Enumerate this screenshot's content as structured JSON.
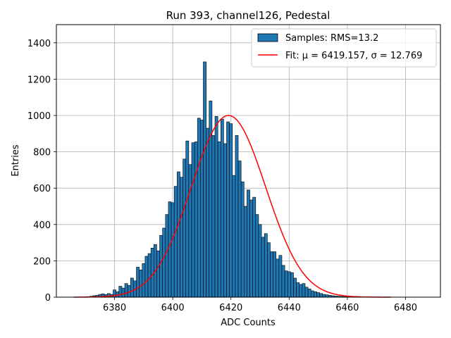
{
  "chart_data": {
    "type": "bar",
    "title": "Run 393, channel126, Pedestal",
    "xlabel": "ADC Counts",
    "ylabel": "Entries",
    "xlim": [
      6360,
      6492
    ],
    "ylim": [
      0,
      1500
    ],
    "xticks": [
      6380,
      6400,
      6420,
      6440,
      6460,
      6480
    ],
    "yticks": [
      0,
      200,
      400,
      600,
      800,
      1000,
      1200,
      1400
    ],
    "grid": true,
    "legend_position": "top-right",
    "bin_width": 1,
    "bins": {
      "x": [
        6370,
        6371,
        6372,
        6373,
        6374,
        6375,
        6376,
        6377,
        6378,
        6379,
        6380,
        6381,
        6382,
        6383,
        6384,
        6385,
        6386,
        6387,
        6388,
        6389,
        6390,
        6391,
        6392,
        6393,
        6394,
        6395,
        6396,
        6397,
        6398,
        6399,
        6400,
        6401,
        6402,
        6403,
        6404,
        6405,
        6406,
        6407,
        6408,
        6409,
        6410,
        6411,
        6412,
        6413,
        6414,
        6415,
        6416,
        6417,
        6418,
        6419,
        6420,
        6421,
        6422,
        6423,
        6424,
        6425,
        6426,
        6427,
        6428,
        6429,
        6430,
        6431,
        6432,
        6433,
        6434,
        6435,
        6436,
        6437,
        6438,
        6439,
        6440,
        6441,
        6442,
        6443,
        6444,
        6445,
        6446,
        6447,
        6448,
        6449,
        6450,
        6451,
        6452,
        6453,
        6454,
        6455,
        6456,
        6457,
        6458,
        6459,
        6460,
        6461,
        6462,
        6463,
        6464,
        6465,
        6466,
        6467,
        6468,
        6469
      ],
      "counts": [
        2,
        3,
        5,
        8,
        10,
        15,
        18,
        14,
        20,
        15,
        40,
        30,
        60,
        50,
        75,
        65,
        105,
        90,
        165,
        150,
        185,
        225,
        240,
        270,
        290,
        255,
        340,
        380,
        455,
        525,
        520,
        610,
        690,
        660,
        760,
        860,
        730,
        850,
        855,
        985,
        975,
        1295,
        930,
        1080,
        890,
        995,
        855,
        980,
        845,
        965,
        955,
        670,
        890,
        750,
        635,
        500,
        590,
        535,
        550,
        455,
        400,
        330,
        350,
        300,
        250,
        250,
        210,
        230,
        175,
        145,
        140,
        135,
        105,
        80,
        70,
        75,
        55,
        45,
        35,
        30,
        25,
        20,
        15,
        13,
        10,
        8,
        6,
        5,
        4,
        3,
        2,
        2,
        1,
        1,
        1,
        1,
        0,
        0,
        0,
        0
      ]
    },
    "series": [
      {
        "name": "Samples: RMS=13.2",
        "kind": "histogram",
        "color": "#1f77b4"
      },
      {
        "name": "Fit: μ = 6419.157, σ = 12.769",
        "kind": "line",
        "color": "#ff0000",
        "mu": 6419.157,
        "sigma": 12.769,
        "amplitude": 1000,
        "x_range": [
          6366,
          6475
        ]
      }
    ]
  }
}
